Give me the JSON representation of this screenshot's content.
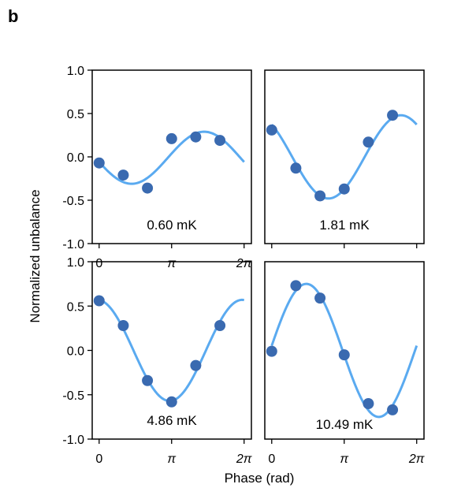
{
  "panel_label": "b",
  "ylabel": "Normalized unbalance",
  "xlabel": "Phase (rad)",
  "colors": {
    "points": "#3a6ab0",
    "curve": "#5aaaf0",
    "axes": "#000000"
  },
  "chart_data": [
    {
      "type": "scatter",
      "annotation": "0.60 mK",
      "xlim": [
        -0.3,
        6.6
      ],
      "ylim": [
        -1.0,
        1.0
      ],
      "yticks": [
        "1.0",
        "0.5",
        "0.0",
        "-0.5",
        "-1.0"
      ],
      "xticks": [
        "0",
        "π",
        "2π"
      ],
      "points": {
        "x": [
          0,
          1.047,
          2.094,
          3.142,
          4.189,
          5.236
        ],
        "y": [
          -0.07,
          -0.21,
          -0.36,
          0.21,
          0.23,
          0.19
        ]
      },
      "fit": {
        "offset": -0.01,
        "amplitude": 0.3,
        "phase_of_max": 4.55
      }
    },
    {
      "type": "scatter",
      "annotation": "1.81 mK",
      "xlim": [
        -0.3,
        6.6
      ],
      "ylim": [
        -1.0,
        1.0
      ],
      "yticks": [],
      "xticks": [],
      "points": {
        "x": [
          0,
          1.047,
          2.094,
          3.142,
          4.189,
          5.236
        ],
        "y": [
          0.31,
          -0.13,
          -0.45,
          -0.37,
          0.17,
          0.48
        ]
      },
      "fit": {
        "offset": 0.0,
        "amplitude": 0.48,
        "phase_of_max": 5.6
      }
    },
    {
      "type": "scatter",
      "annotation": "4.86 mK",
      "xlim": [
        -0.3,
        6.6
      ],
      "ylim": [
        -1.0,
        1.0
      ],
      "yticks": [
        "1.0",
        "0.5",
        "0.0",
        "-0.5",
        "-1.0"
      ],
      "xticks": [
        "0",
        "π",
        "2π"
      ],
      "points": {
        "x": [
          0,
          1.047,
          2.094,
          3.142,
          4.189,
          5.236
        ],
        "y": [
          0.56,
          0.28,
          -0.34,
          -0.58,
          -0.17,
          0.28
        ]
      },
      "fit": {
        "offset": 0.0,
        "amplitude": 0.57,
        "phase_of_max": 6.2
      }
    },
    {
      "type": "scatter",
      "annotation": "10.49 mK",
      "xlim": [
        -0.3,
        6.6
      ],
      "ylim": [
        -1.0,
        1.0
      ],
      "yticks": [],
      "xticks": [
        "0",
        "π",
        "2π"
      ],
      "points": {
        "x": [
          0,
          1.047,
          2.094,
          3.142,
          4.189,
          5.236
        ],
        "y": [
          -0.01,
          0.73,
          0.59,
          -0.05,
          -0.6,
          -0.67
        ]
      },
      "fit": {
        "offset": 0.0,
        "amplitude": 0.75,
        "phase_of_max": 1.5
      }
    }
  ]
}
